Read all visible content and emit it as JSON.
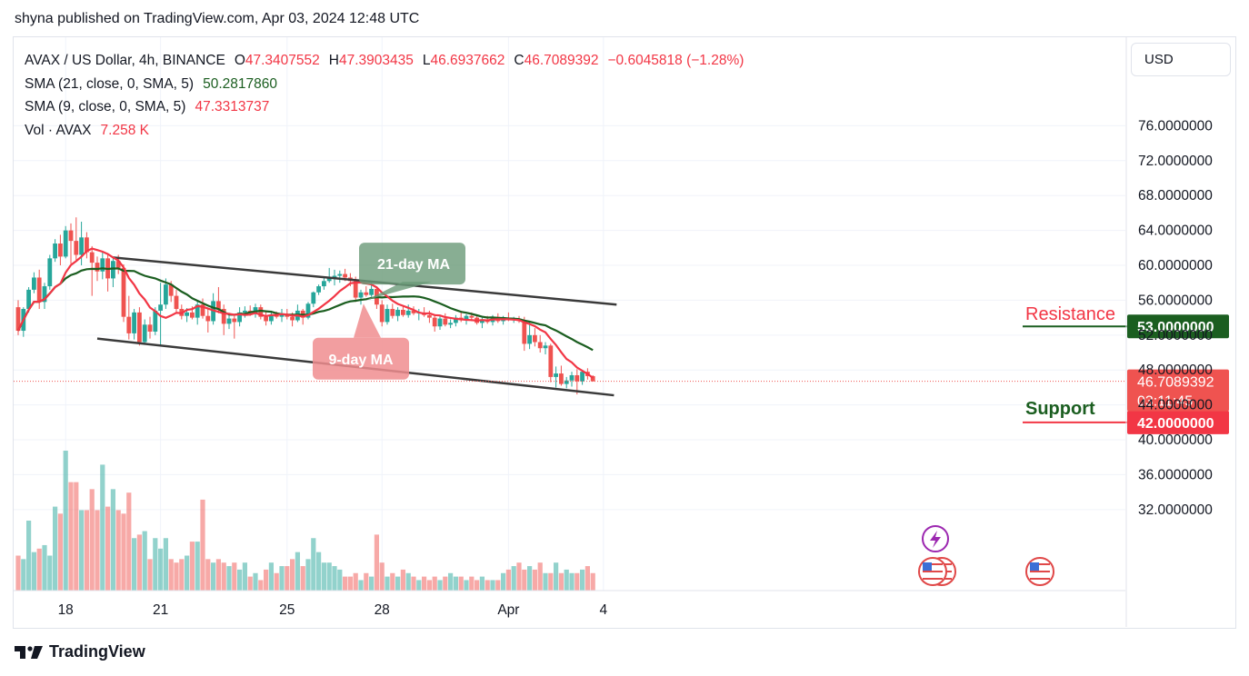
{
  "header": {
    "published_by": "shyna published on TradingView.com, Apr 03, 2024 12:48 UTC"
  },
  "legend": {
    "symbol": "AVAX / US Dollar, 4h, BINANCE",
    "open": "47.3407552",
    "high": "47.3903435",
    "low": "46.6937662",
    "close": "46.7089392",
    "change": "−0.6045818 (−1.28%)",
    "sma21_label": "SMA (21, close, 0, SMA, 5)",
    "sma21_value": "50.2817860",
    "sma9_label": "SMA (9, close, 0, SMA, 5)",
    "sma9_value": "47.3313737",
    "vol_label": "Vol · AVAX",
    "vol_value": "7.258 K"
  },
  "toolbar": {
    "currency": "USD"
  },
  "footer": {
    "brand": "TradingView"
  },
  "colors": {
    "up": "#26a69a",
    "down": "#ef5350",
    "sma21": "#1b5e20",
    "sma9": "#f23645",
    "channel": "#3a3a3a",
    "resistance": "#1b5e20",
    "support": "#f23645"
  },
  "chart_data": {
    "type": "candlestick",
    "symbol": "AVAX/USD",
    "timeframe": "4h",
    "x_ticks": [
      {
        "label": "18",
        "index": 9
      },
      {
        "label": "21",
        "index": 27
      },
      {
        "label": "25",
        "index": 51
      },
      {
        "label": "28",
        "index": 69
      },
      {
        "label": "Apr",
        "index": 93
      },
      {
        "label": "4",
        "index": 111
      }
    ],
    "y_ticks": [
      32,
      36,
      40,
      44,
      48,
      52,
      56,
      60,
      64,
      68,
      72,
      76
    ],
    "y_tick_labels": [
      "32.0000000",
      "36.0000000",
      "40.0000000",
      "44.0000000",
      "48.0000000",
      "52.0000000",
      "56.0000000",
      "60.0000000",
      "64.0000000",
      "68.0000000",
      "72.0000000",
      "76.0000000"
    ],
    "ylim": [
      27.4,
      80.0
    ],
    "last_price": {
      "value": 46.7089392,
      "label": "46.7089392",
      "countdown": "03:11:45"
    },
    "candles": [
      [
        55.2,
        56.0,
        52.0,
        52.5
      ],
      [
        52.5,
        55.2,
        51.8,
        55.0
      ],
      [
        55.0,
        57.5,
        54.6,
        57.2
      ],
      [
        57.2,
        59.2,
        56.8,
        58.6
      ],
      [
        58.6,
        59.5,
        55.0,
        55.8
      ],
      [
        55.8,
        58.0,
        55.0,
        57.6
      ],
      [
        57.6,
        61.2,
        57.2,
        60.8
      ],
      [
        60.8,
        63.0,
        60.4,
        62.5
      ],
      [
        62.5,
        63.5,
        60.0,
        61.0
      ],
      [
        61.0,
        64.5,
        60.8,
        64.0
      ],
      [
        64.0,
        64.8,
        60.2,
        62.8
      ],
      [
        62.8,
        65.5,
        60.6,
        61.2
      ],
      [
        61.2,
        65.0,
        60.0,
        63.2
      ],
      [
        63.2,
        63.8,
        60.8,
        61.5
      ],
      [
        61.5,
        62.2,
        56.5,
        60.3
      ],
      [
        60.3,
        61.0,
        58.2,
        59.3
      ],
      [
        59.3,
        61.5,
        58.4,
        60.8
      ],
      [
        60.8,
        61.3,
        57.0,
        58.5
      ],
      [
        58.5,
        61.0,
        57.5,
        60.5
      ],
      [
        60.5,
        61.2,
        59.0,
        59.7
      ],
      [
        59.7,
        60.1,
        53.5,
        54.1
      ],
      [
        54.1,
        56.5,
        51.5,
        52.2
      ],
      [
        52.2,
        55.0,
        51.5,
        54.6
      ],
      [
        54.6,
        55.2,
        50.8,
        51.2
      ],
      [
        51.2,
        53.8,
        51.0,
        53.2
      ],
      [
        53.2,
        54.1,
        51.6,
        52.4
      ],
      [
        52.4,
        55.2,
        52.0,
        54.8
      ],
      [
        54.8,
        58.0,
        50.8,
        55.5
      ],
      [
        55.5,
        58.5,
        55.0,
        57.8
      ],
      [
        57.8,
        58.2,
        55.8,
        56.5
      ],
      [
        56.5,
        57.2,
        54.5,
        55.0
      ],
      [
        55.0,
        55.5,
        53.8,
        54.2
      ],
      [
        54.2,
        55.1,
        53.5,
        54.6
      ],
      [
        54.6,
        55.3,
        53.8,
        54.0
      ],
      [
        54.0,
        56.0,
        53.2,
        55.5
      ],
      [
        55.5,
        56.2,
        53.9,
        54.2
      ],
      [
        54.2,
        55.0,
        52.3,
        53.6
      ],
      [
        53.6,
        56.8,
        53.2,
        55.9
      ],
      [
        55.9,
        57.5,
        54.5,
        55.0
      ],
      [
        55.0,
        55.5,
        52.0,
        53.3
      ],
      [
        53.3,
        54.5,
        52.7,
        53.9
      ],
      [
        53.9,
        54.2,
        51.6,
        53.5
      ],
      [
        53.5,
        55.2,
        53.0,
        54.6
      ],
      [
        54.6,
        55.3,
        54.0,
        54.8
      ],
      [
        54.8,
        55.4,
        54.2,
        54.6
      ],
      [
        54.6,
        55.6,
        54.0,
        55.2
      ],
      [
        55.2,
        55.5,
        53.8,
        54.1
      ],
      [
        54.1,
        54.7,
        53.1,
        53.6
      ],
      [
        53.6,
        54.8,
        53.2,
        54.3
      ],
      [
        54.3,
        54.7,
        53.9,
        54.1
      ],
      [
        54.1,
        55.0,
        53.5,
        54.4
      ],
      [
        54.4,
        55.0,
        53.8,
        54.1
      ],
      [
        54.1,
        54.6,
        53.0,
        53.7
      ],
      [
        53.7,
        55.5,
        53.5,
        54.8
      ],
      [
        54.8,
        55.0,
        53.2,
        54.0
      ],
      [
        54.0,
        55.8,
        53.8,
        55.6
      ],
      [
        55.6,
        57.0,
        55.2,
        56.9
      ],
      [
        56.9,
        57.8,
        56.6,
        57.6
      ],
      [
        57.6,
        58.6,
        57.2,
        58.2
      ],
      [
        58.2,
        59.7,
        58.0,
        58.6
      ],
      [
        58.6,
        59.5,
        57.7,
        58.8
      ],
      [
        58.8,
        59.4,
        58.0,
        59.0
      ],
      [
        59.0,
        59.6,
        58.2,
        58.6
      ],
      [
        58.6,
        59.1,
        57.6,
        58.2
      ],
      [
        58.2,
        58.7,
        55.8,
        56.3
      ],
      [
        56.3,
        57.2,
        55.5,
        56.9
      ],
      [
        56.9,
        57.6,
        56.4,
        56.6
      ],
      [
        56.6,
        58.0,
        56.4,
        57.3
      ],
      [
        57.3,
        57.6,
        55.0,
        55.5
      ],
      [
        55.5,
        56.0,
        53.0,
        53.5
      ],
      [
        53.5,
        55.5,
        53.2,
        55.0
      ],
      [
        55.0,
        55.6,
        53.9,
        54.2
      ],
      [
        54.2,
        55.2,
        53.6,
        54.9
      ],
      [
        54.9,
        55.4,
        54.1,
        54.3
      ],
      [
        54.3,
        55.5,
        54.0,
        54.8
      ],
      [
        54.8,
        55.3,
        54.3,
        54.5
      ],
      [
        54.5,
        55.0,
        53.7,
        54.6
      ],
      [
        54.6,
        55.2,
        54.1,
        54.3
      ],
      [
        54.3,
        54.8,
        53.4,
        54.0
      ],
      [
        54.0,
        54.4,
        52.4,
        53.0
      ],
      [
        53.0,
        54.2,
        52.6,
        53.9
      ],
      [
        53.9,
        54.5,
        53.0,
        53.2
      ],
      [
        53.2,
        53.8,
        52.8,
        53.4
      ],
      [
        53.4,
        54.3,
        53.0,
        54.0
      ],
      [
        54.0,
        54.8,
        53.5,
        53.8
      ],
      [
        53.8,
        54.4,
        53.2,
        54.2
      ],
      [
        54.2,
        54.6,
        53.6,
        54.0
      ],
      [
        54.0,
        54.3,
        53.2,
        53.4
      ],
      [
        53.4,
        54.0,
        52.8,
        53.7
      ],
      [
        53.7,
        54.2,
        53.3,
        53.5
      ],
      [
        53.5,
        54.3,
        53.1,
        54.1
      ],
      [
        54.1,
        54.5,
        53.4,
        53.6
      ],
      [
        53.6,
        54.2,
        53.2,
        54.0
      ],
      [
        54.0,
        54.6,
        53.6,
        53.8
      ],
      [
        53.8,
        54.1,
        53.4,
        53.9
      ],
      [
        53.9,
        54.2,
        53.4,
        53.6
      ],
      [
        53.6,
        54.1,
        50.2,
        51.0
      ],
      [
        51.0,
        53.5,
        50.4,
        52.0
      ],
      [
        52.0,
        52.8,
        50.7,
        51.2
      ],
      [
        51.2,
        52.0,
        50.0,
        50.5
      ],
      [
        50.5,
        51.2,
        49.8,
        50.8
      ],
      [
        50.8,
        51.0,
        46.6,
        47.2
      ],
      [
        47.2,
        48.4,
        46.0,
        47.6
      ],
      [
        47.6,
        48.5,
        46.2,
        46.4
      ],
      [
        46.4,
        47.2,
        45.9,
        46.8
      ],
      [
        46.8,
        47.8,
        46.1,
        47.4
      ],
      [
        47.4,
        48.1,
        45.2,
        46.7
      ],
      [
        46.7,
        48.0,
        46.3,
        47.8
      ],
      [
        47.8,
        48.2,
        46.9,
        47.3
      ],
      [
        47.3,
        47.4,
        46.7,
        46.7
      ]
    ],
    "volume": [
      10,
      9,
      20,
      11,
      12,
      13,
      10,
      24,
      22,
      40,
      31,
      31,
      23,
      23,
      29,
      23,
      36,
      24,
      29,
      23,
      22,
      28,
      15,
      16,
      17,
      9,
      15,
      12,
      15,
      9,
      8,
      9,
      10,
      14,
      14,
      26,
      9,
      8,
      9,
      8,
      7,
      8,
      6,
      8,
      4,
      5,
      3,
      6,
      8,
      5,
      7,
      7,
      9,
      11,
      7,
      9,
      15,
      11,
      8,
      8,
      7,
      6,
      4,
      4,
      5,
      3,
      5,
      4,
      16,
      8,
      4,
      5,
      4,
      6,
      5,
      4,
      3,
      4,
      3,
      4,
      3,
      4,
      5,
      4,
      4,
      3,
      4,
      3,
      4,
      3,
      3,
      3,
      5,
      6,
      7,
      8,
      6,
      7,
      6,
      8,
      5,
      5,
      8,
      5,
      6,
      5,
      5,
      6,
      7,
      5
    ],
    "overlays": [
      {
        "type": "line",
        "name": "SMA (21, close, 0, SMA, 5)",
        "value_label": "50.2817860"
      },
      {
        "type": "line",
        "name": "SMA (9, close, 0, SMA, 5)",
        "value_label": "47.3313737"
      }
    ],
    "channel": {
      "upper": {
        "from": {
          "index": 18,
          "value": 60.9
        },
        "to": {
          "index": 113.5,
          "value": 55.5
        }
      },
      "lower": {
        "from": {
          "index": 15,
          "value": 51.6
        },
        "to": {
          "index": 113,
          "value": 45.1
        }
      }
    },
    "levels": [
      {
        "name": "Resistance",
        "value": 53.0,
        "label": "53.0000000"
      },
      {
        "name": "Support",
        "value": 42.0,
        "label": "42.0000000"
      }
    ],
    "annotations": [
      {
        "text": "21-day MA",
        "x_index": 75,
        "y_value": 60.2
      },
      {
        "text": "9-day MA",
        "x_index": 65,
        "y_value": 49.4
      }
    ]
  }
}
